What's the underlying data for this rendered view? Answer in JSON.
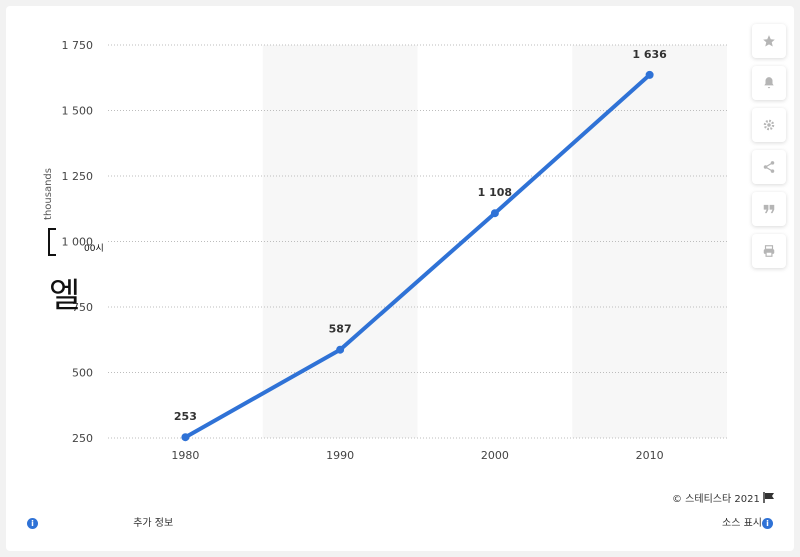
{
  "chart_data": {
    "type": "line",
    "categories": [
      "1980",
      "1990",
      "2000",
      "2010"
    ],
    "values": [
      253,
      587,
      1108,
      1636
    ],
    "value_labels": [
      "253",
      "587",
      "1 108",
      "1 636"
    ],
    "ylabel": "thousands",
    "ylim": [
      250,
      1750
    ],
    "yticks": [
      250,
      500,
      750,
      1000,
      1250,
      1500,
      1750
    ],
    "ytick_labels": [
      "250",
      "500",
      "750",
      "1 000",
      "1 250",
      "1 500",
      "1 750"
    ],
    "grid": true,
    "line_color": "#2f72d6",
    "band_color": "#f7f7f7"
  },
  "ylabel_glyph": "엘",
  "tick_overlay": "00시",
  "toolbar": {
    "icons": [
      "star-icon",
      "bell-icon",
      "gear-icon",
      "share-icon",
      "quote-icon",
      "print-icon"
    ]
  },
  "footer": {
    "copyright": "© 스테티스타 2021",
    "more_info": "추가 정보",
    "source": "소스 표시"
  }
}
